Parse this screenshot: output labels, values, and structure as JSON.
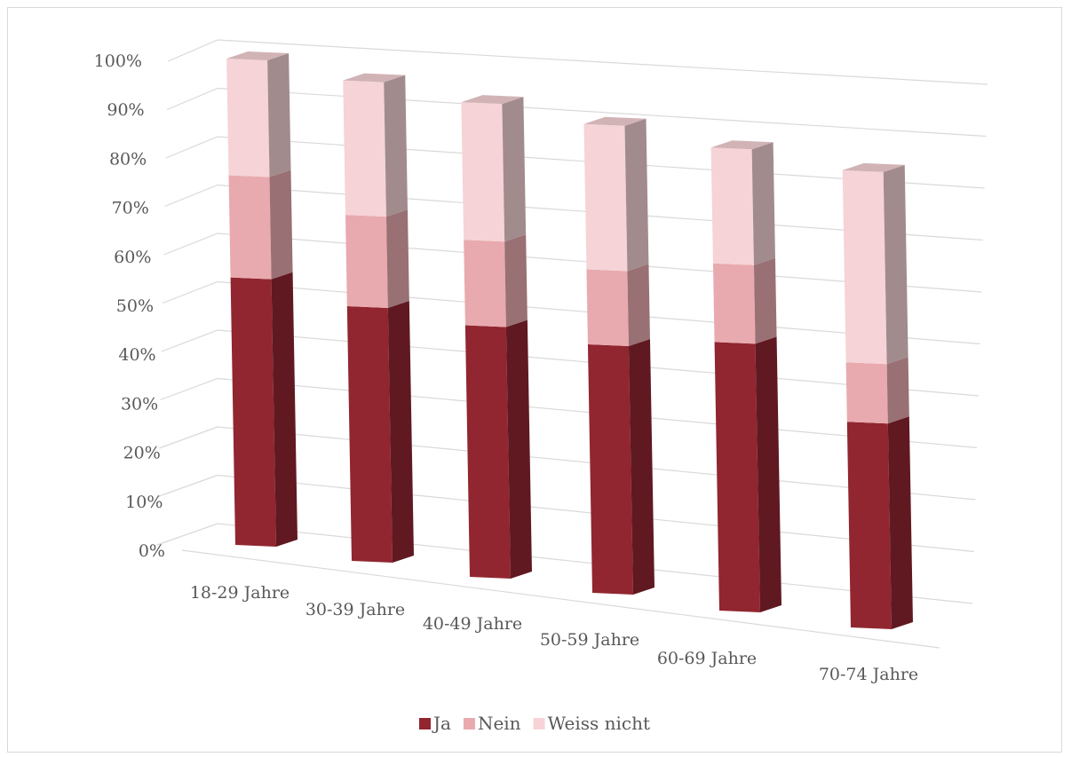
{
  "chart_data": {
    "type": "bar",
    "stacked": "percent",
    "projection": "3d",
    "title": "",
    "xlabel": "",
    "ylabel": "",
    "ylim": [
      0,
      100
    ],
    "y_ticks": [
      "0%",
      "10%",
      "20%",
      "30%",
      "40%",
      "50%",
      "60%",
      "70%",
      "80%",
      "90%",
      "100%"
    ],
    "categories": [
      "18-29 Jahre",
      "30-39 Jahre",
      "40-49 Jahre",
      "50-59 Jahre",
      "60-69 Jahre",
      "70-74 Jahre"
    ],
    "series": [
      {
        "name": "Ja",
        "values": [
          55,
          53,
          53,
          53,
          58,
          45
        ],
        "color": "#912630"
      },
      {
        "name": "Nein",
        "values": [
          21,
          19,
          18,
          16,
          17,
          13
        ],
        "color": "#e8aaae"
      },
      {
        "name": "Weiss nicht",
        "values": [
          24,
          28,
          29,
          31,
          25,
          42
        ],
        "color": "#f6d3d6"
      }
    ],
    "grid": true,
    "legend_position": "bottom"
  }
}
